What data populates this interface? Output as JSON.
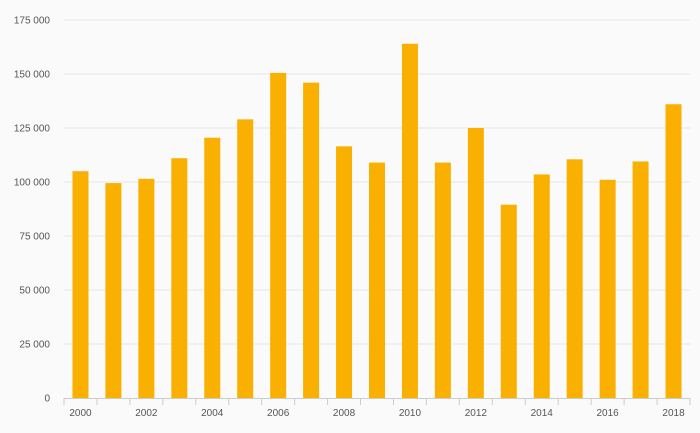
{
  "chart_data": {
    "type": "bar",
    "title": "",
    "xlabel": "",
    "ylabel": "",
    "ylim": [
      0,
      175000
    ],
    "yticks": [
      0,
      25000,
      50000,
      75000,
      100000,
      125000,
      150000,
      175000
    ],
    "ytick_labels": [
      "0",
      "25 000",
      "50 000",
      "75 000",
      "100 000",
      "125 000",
      "150 000",
      "175 000"
    ],
    "categories": [
      "2000",
      "2001",
      "2002",
      "2003",
      "2004",
      "2005",
      "2006",
      "2007",
      "2008",
      "2009",
      "2010",
      "2011",
      "2012",
      "2013",
      "2014",
      "2015",
      "2016",
      "2017",
      "2018"
    ],
    "xtick_labels": [
      "2000",
      "",
      "2002",
      "",
      "2004",
      "",
      "2006",
      "",
      "2008",
      "",
      "2010",
      "",
      "2012",
      "",
      "2014",
      "",
      "2016",
      "",
      "2018"
    ],
    "values": [
      105000,
      99500,
      101500,
      111000,
      120500,
      129000,
      150500,
      146000,
      116500,
      109000,
      164000,
      109000,
      125000,
      89500,
      103500,
      110500,
      101000,
      109500,
      136000
    ],
    "grid": true,
    "legend": "none",
    "bar_color": "#f9b000"
  }
}
